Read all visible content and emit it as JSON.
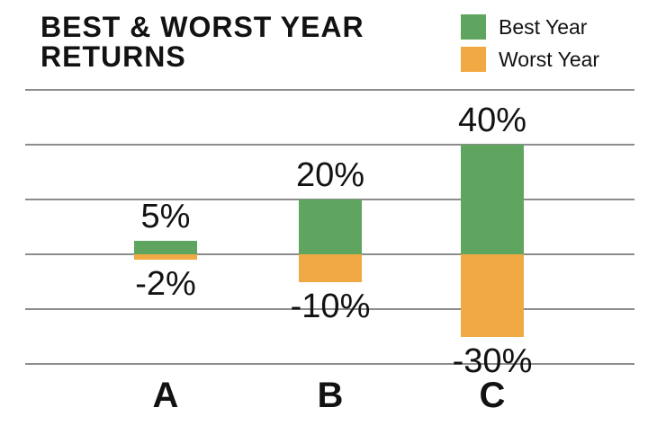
{
  "title": "BEST & WORST YEAR RETURNS",
  "title_lines": [
    "BEST & WORST YEAR",
    "RETURNS"
  ],
  "legend": {
    "items": [
      {
        "label": "Best Year",
        "color": "#60a55f"
      },
      {
        "label": "Worst Year",
        "color": "#f0a943"
      }
    ]
  },
  "colors": {
    "best": "#60a55f",
    "worst": "#f0a943",
    "grid": "#8c8c8c",
    "text": "#121212",
    "background": "#ffffff"
  },
  "chart_data": {
    "type": "bar",
    "title": "BEST & WORST YEAR RETURNS",
    "categories": [
      "A",
      "B",
      "C"
    ],
    "series": [
      {
        "name": "Best Year",
        "color": "#60a55f",
        "values": [
          5,
          20,
          40
        ],
        "labels": [
          "5%",
          "20%",
          "40%"
        ]
      },
      {
        "name": "Worst Year",
        "color": "#f0a943",
        "values": [
          -2,
          -10,
          -30
        ],
        "labels": [
          "-2%",
          "-10%",
          "-30%"
        ]
      }
    ],
    "xlabel": "",
    "ylabel": "",
    "ylim": [
      -60,
      60
    ],
    "grid_values": [
      60,
      40,
      20,
      0,
      -20,
      -40
    ],
    "grid": true,
    "baseline": 0,
    "legend_position": "top-right",
    "value_labels_shown": true,
    "axis_tick_labels_shown": false
  }
}
